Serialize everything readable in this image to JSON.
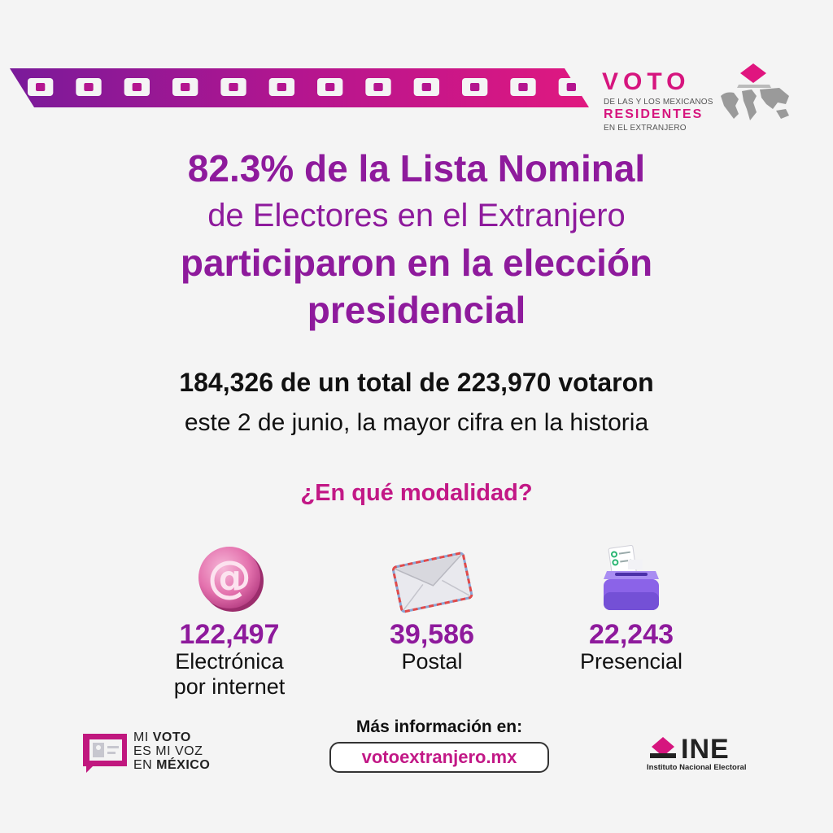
{
  "header": {
    "logo": {
      "word": "VOTO",
      "line1": "DE LAS Y LOS MEXICANOS",
      "line2": "RESIDENTES",
      "line3": "EN EL EXTRANJERO"
    }
  },
  "headline": {
    "line1": "82.3% de la Lista Nominal",
    "line2": "de Electores en el Extranjero",
    "line3": "participaron en la elección",
    "line4": "presidencial"
  },
  "subheadline": {
    "line1": "184,326 de un total de 223,970 votaron",
    "line2": "este 2 de junio, la mayor cifra en la historia"
  },
  "question": "¿En qué modalidad?",
  "modalities": [
    {
      "icon": "at-sign-icon",
      "value": "122,497",
      "label_line1": "Electrónica",
      "label_line2": "por internet"
    },
    {
      "icon": "envelope-icon",
      "value": "39,586",
      "label_line1": "Postal",
      "label_line2": ""
    },
    {
      "icon": "ballot-box-icon",
      "value": "22,243",
      "label_line1": "Presencial",
      "label_line2": ""
    }
  ],
  "footer": {
    "mivoto": {
      "line1a": "MI ",
      "line1b": "VOTO",
      "line2": "ES MI VOZ",
      "line3a": "EN ",
      "line3b": "MÉXICO"
    },
    "more_info_label": "Más información en:",
    "url": "votoextranjero.mx",
    "ine": {
      "word": "INE",
      "subtitle": "Instituto Nacional Electoral"
    }
  },
  "colors": {
    "purple": "#8e1a9c",
    "magenta": "#d6157e",
    "background": "#f4f4f4"
  }
}
